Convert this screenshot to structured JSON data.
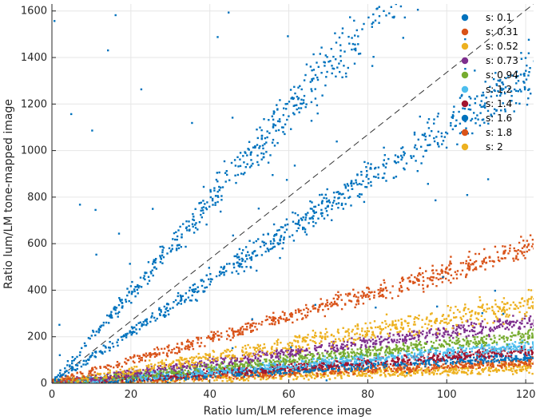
{
  "chart_data": {
    "type": "scatter",
    "xlabel": "Ratio lum/LM reference image",
    "ylabel": "Ratio lum/LM tone-mapped image",
    "xlim": [
      0,
      122
    ],
    "ylim": [
      0,
      1630
    ],
    "xticks": [
      0,
      20,
      40,
      60,
      80,
      100,
      120
    ],
    "yticks": [
      0,
      200,
      400,
      600,
      800,
      1000,
      1200,
      1400,
      1600
    ],
    "grid": true,
    "legend_position": "top-right",
    "reference_line": {
      "style": "dashed",
      "x": [
        0,
        122
      ],
      "y": [
        0,
        1630
      ]
    },
    "series": [
      {
        "name": "s: 0.1",
        "color": "#0072BD",
        "slopes": [
          19.5,
          11.0
        ],
        "spread": 0.1
      },
      {
        "name": "s: 0.31",
        "color": "#D95319",
        "slope": 4.8,
        "spread": 0.1
      },
      {
        "name": "s: 0.52",
        "color": "#EDB120",
        "slope": 2.8,
        "spread": 0.2
      },
      {
        "name": "s: 0.73",
        "color": "#7E2F8E",
        "slope": 2.2,
        "spread": 0.12
      },
      {
        "name": "s: 0.94",
        "color": "#77AC30",
        "slope": 1.7,
        "spread": 0.1
      },
      {
        "name": "s: 1.2",
        "color": "#4DBEEE",
        "slope": 1.35,
        "spread": 0.1
      },
      {
        "name": "s: 1.4",
        "color": "#A2142F",
        "slope": 1.15,
        "spread": 0.1
      },
      {
        "name": "s: 1.6",
        "color": "#0072BD",
        "slope": 0.95,
        "spread": 0.1
      },
      {
        "name": "s: 1.8",
        "color": "#D95319",
        "slope": 0.75,
        "spread": 0.12
      },
      {
        "name": "s: 2",
        "color": "#EDB120",
        "slope": 0.55,
        "spread": 0.25
      }
    ]
  }
}
